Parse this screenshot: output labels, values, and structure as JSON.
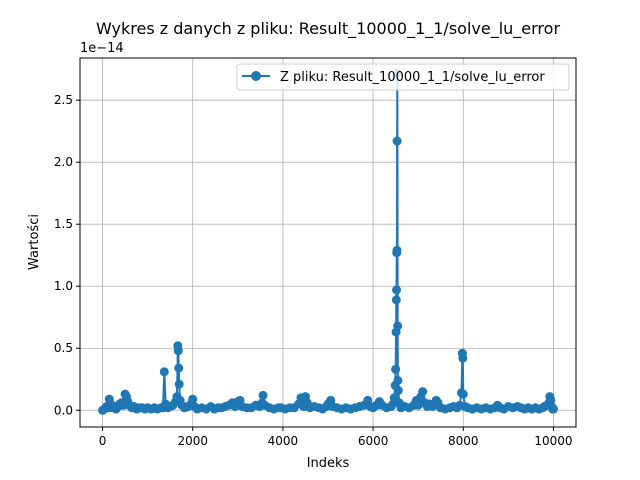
{
  "chart_data": {
    "type": "line",
    "title": "Wykres z danych z pliku: Result_10000_1_1/solve_lu_error",
    "xlabel": "Indeks",
    "ylabel": "Wartości",
    "y_offset_label": "1e−14",
    "xlim": [
      -500,
      10500
    ],
    "ylim": [
      -0.135,
      2.84
    ],
    "y_scale_factor": 1e-14,
    "xticks": [
      0,
      2000,
      4000,
      6000,
      8000,
      10000
    ],
    "xtick_labels": [
      "0",
      "2000",
      "4000",
      "6000",
      "8000",
      "10000"
    ],
    "yticks": [
      0.0,
      0.5,
      1.0,
      1.5,
      2.0,
      2.5
    ],
    "ytick_labels": [
      "0.0",
      "0.5",
      "1.0",
      "1.5",
      "2.0",
      "2.5"
    ],
    "grid": true,
    "legend_position": "top-right",
    "series": [
      {
        "name": "Z pliku: Result_10000_1_1/solve_lu_error",
        "color": "#1f77b4",
        "marker": "circle",
        "points": [
          [
            0,
            0.0
          ],
          [
            40,
            0.01
          ],
          [
            90,
            0.03
          ],
          [
            120,
            0.02
          ],
          [
            150,
            0.09
          ],
          [
            180,
            0.05
          ],
          [
            210,
            0.02
          ],
          [
            260,
            0.03
          ],
          [
            300,
            0.01
          ],
          [
            340,
            0.03
          ],
          [
            380,
            0.05
          ],
          [
            420,
            0.06
          ],
          [
            470,
            0.04
          ],
          [
            500,
            0.13
          ],
          [
            530,
            0.11
          ],
          [
            560,
            0.07
          ],
          [
            600,
            0.04
          ],
          [
            650,
            0.02
          ],
          [
            700,
            0.03
          ],
          [
            760,
            0.01
          ],
          [
            820,
            0.02
          ],
          [
            880,
            0.02
          ],
          [
            940,
            0.01
          ],
          [
            1000,
            0.02
          ],
          [
            1080,
            0.01
          ],
          [
            1150,
            0.02
          ],
          [
            1220,
            0.01
          ],
          [
            1300,
            0.02
          ],
          [
            1340,
            0.02
          ],
          [
            1370,
            0.31
          ],
          [
            1400,
            0.05
          ],
          [
            1450,
            0.02
          ],
          [
            1500,
            0.03
          ],
          [
            1560,
            0.04
          ],
          [
            1620,
            0.07
          ],
          [
            1650,
            0.11
          ],
          [
            1670,
            0.52
          ],
          [
            1680,
            0.48
          ],
          [
            1690,
            0.34
          ],
          [
            1700,
            0.21
          ],
          [
            1720,
            0.08
          ],
          [
            1760,
            0.04
          ],
          [
            1820,
            0.02
          ],
          [
            1900,
            0.03
          ],
          [
            1960,
            0.05
          ],
          [
            2000,
            0.09
          ],
          [
            2040,
            0.03
          ],
          [
            2100,
            0.01
          ],
          [
            2200,
            0.02
          ],
          [
            2300,
            0.01
          ],
          [
            2400,
            0.03
          ],
          [
            2480,
            0.01
          ],
          [
            2560,
            0.02
          ],
          [
            2640,
            0.02
          ],
          [
            2720,
            0.03
          ],
          [
            2800,
            0.04
          ],
          [
            2880,
            0.06
          ],
          [
            2940,
            0.03
          ],
          [
            3000,
            0.07
          ],
          [
            3050,
            0.08
          ],
          [
            3100,
            0.03
          ],
          [
            3200,
            0.02
          ],
          [
            3300,
            0.02
          ],
          [
            3400,
            0.04
          ],
          [
            3480,
            0.03
          ],
          [
            3540,
            0.06
          ],
          [
            3560,
            0.12
          ],
          [
            3600,
            0.04
          ],
          [
            3700,
            0.02
          ],
          [
            3800,
            0.01
          ],
          [
            3900,
            0.02
          ],
          [
            3960,
            0.02
          ],
          [
            4050,
            0.01
          ],
          [
            4150,
            0.02
          ],
          [
            4250,
            0.02
          ],
          [
            4350,
            0.05
          ],
          [
            4400,
            0.1
          ],
          [
            4460,
            0.03
          ],
          [
            4500,
            0.11
          ],
          [
            4540,
            0.06
          ],
          [
            4600,
            0.02
          ],
          [
            4700,
            0.03
          ],
          [
            4800,
            0.02
          ],
          [
            4880,
            0.01
          ],
          [
            4960,
            0.03
          ],
          [
            5000,
            0.05
          ],
          [
            5060,
            0.08
          ],
          [
            5100,
            0.03
          ],
          [
            5200,
            0.02
          ],
          [
            5300,
            0.01
          ],
          [
            5400,
            0.02
          ],
          [
            5500,
            0.01
          ],
          [
            5600,
            0.02
          ],
          [
            5700,
            0.03
          ],
          [
            5800,
            0.04
          ],
          [
            5880,
            0.08
          ],
          [
            5940,
            0.03
          ],
          [
            6000,
            0.02
          ],
          [
            6080,
            0.04
          ],
          [
            6140,
            0.07
          ],
          [
            6200,
            0.04
          ],
          [
            6300,
            0.02
          ],
          [
            6400,
            0.03
          ],
          [
            6440,
            0.05
          ],
          [
            6470,
            0.1
          ],
          [
            6490,
            0.2
          ],
          [
            6500,
            0.33
          ],
          [
            6510,
            0.63
          ],
          [
            6515,
            0.89
          ],
          [
            6520,
            0.97
          ],
          [
            6525,
            1.27
          ],
          [
            6530,
            1.29
          ],
          [
            6533,
            2.17
          ],
          [
            6538,
            2.72
          ],
          [
            6545,
            0.68
          ],
          [
            6550,
            0.24
          ],
          [
            6560,
            0.16
          ],
          [
            6580,
            0.06
          ],
          [
            6620,
            0.02
          ],
          [
            6700,
            0.03
          ],
          [
            6800,
            0.02
          ],
          [
            6900,
            0.04
          ],
          [
            6960,
            0.08
          ],
          [
            7000,
            0.04
          ],
          [
            7060,
            0.11
          ],
          [
            7100,
            0.15
          ],
          [
            7150,
            0.06
          ],
          [
            7200,
            0.03
          ],
          [
            7260,
            0.05
          ],
          [
            7320,
            0.03
          ],
          [
            7400,
            0.08
          ],
          [
            7440,
            0.06
          ],
          [
            7500,
            0.02
          ],
          [
            7600,
            0.01
          ],
          [
            7700,
            0.02
          ],
          [
            7780,
            0.03
          ],
          [
            7860,
            0.02
          ],
          [
            7920,
            0.04
          ],
          [
            7960,
            0.14
          ],
          [
            7980,
            0.46
          ],
          [
            7990,
            0.42
          ],
          [
            8000,
            0.13
          ],
          [
            8040,
            0.03
          ],
          [
            8100,
            0.02
          ],
          [
            8200,
            0.01
          ],
          [
            8300,
            0.02
          ],
          [
            8400,
            0.01
          ],
          [
            8500,
            0.02
          ],
          [
            8600,
            0.01
          ],
          [
            8700,
            0.02
          ],
          [
            8760,
            0.04
          ],
          [
            8820,
            0.02
          ],
          [
            8900,
            0.01
          ],
          [
            9000,
            0.03
          ],
          [
            9100,
            0.02
          ],
          [
            9200,
            0.03
          ],
          [
            9280,
            0.02
          ],
          [
            9360,
            0.01
          ],
          [
            9440,
            0.02
          ],
          [
            9520,
            0.01
          ],
          [
            9600,
            0.02
          ],
          [
            9680,
            0.01
          ],
          [
            9760,
            0.02
          ],
          [
            9800,
            0.03
          ],
          [
            9860,
            0.04
          ],
          [
            9900,
            0.06
          ],
          [
            9920,
            0.11
          ],
          [
            9940,
            0.08
          ],
          [
            9960,
            0.03
          ],
          [
            9980,
            0.01
          ],
          [
            10000,
            0.01
          ]
        ]
      }
    ]
  }
}
